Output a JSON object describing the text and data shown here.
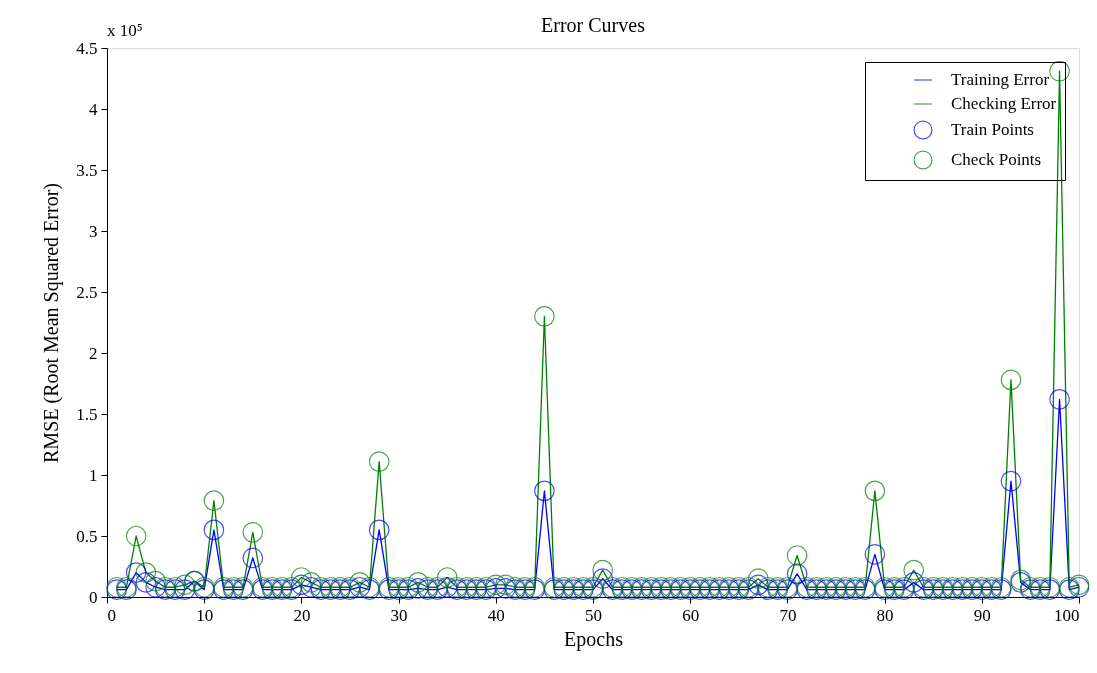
{
  "chart_data": {
    "type": "line",
    "title": "Error Curves",
    "xlabel": "Epochs",
    "ylabel": "RMSE (Root Mean Squared Error)",
    "annotations": [
      "x 10⁵"
    ],
    "x": [
      1,
      2,
      3,
      4,
      5,
      6,
      7,
      8,
      9,
      10,
      11,
      12,
      13,
      14,
      15,
      16,
      17,
      18,
      19,
      20,
      21,
      22,
      23,
      24,
      25,
      26,
      27,
      28,
      29,
      30,
      31,
      32,
      33,
      34,
      35,
      36,
      37,
      38,
      39,
      40,
      41,
      42,
      43,
      44,
      45,
      46,
      47,
      48,
      49,
      50,
      51,
      52,
      53,
      54,
      55,
      56,
      57,
      58,
      59,
      60,
      61,
      62,
      63,
      64,
      65,
      66,
      67,
      68,
      69,
      70,
      71,
      72,
      73,
      74,
      75,
      76,
      77,
      78,
      79,
      80,
      81,
      82,
      83,
      84,
      85,
      86,
      87,
      88,
      89,
      90,
      91,
      92,
      93,
      94,
      95,
      96,
      97,
      98,
      99,
      100
    ],
    "series": [
      {
        "name": "Training Error",
        "color": "#0000ff",
        "values": [
          0.06,
          0.06,
          0.2,
          0.12,
          0.08,
          0.06,
          0.06,
          0.06,
          0.13,
          0.06,
          0.55,
          0.06,
          0.06,
          0.06,
          0.32,
          0.06,
          0.06,
          0.06,
          0.06,
          0.1,
          0.08,
          0.06,
          0.06,
          0.06,
          0.06,
          0.08,
          0.06,
          0.55,
          0.06,
          0.06,
          0.06,
          0.07,
          0.06,
          0.06,
          0.08,
          0.06,
          0.06,
          0.06,
          0.06,
          0.07,
          0.07,
          0.06,
          0.06,
          0.06,
          0.87,
          0.06,
          0.06,
          0.06,
          0.06,
          0.06,
          0.15,
          0.06,
          0.06,
          0.06,
          0.06,
          0.06,
          0.06,
          0.06,
          0.06,
          0.06,
          0.06,
          0.06,
          0.06,
          0.06,
          0.06,
          0.06,
          0.1,
          0.06,
          0.06,
          0.06,
          0.19,
          0.06,
          0.06,
          0.06,
          0.06,
          0.06,
          0.06,
          0.06,
          0.35,
          0.06,
          0.06,
          0.06,
          0.12,
          0.06,
          0.06,
          0.06,
          0.06,
          0.06,
          0.06,
          0.06,
          0.06,
          0.06,
          0.95,
          0.12,
          0.06,
          0.06,
          0.06,
          1.62,
          0.06,
          0.08
        ]
      },
      {
        "name": "Checking Error",
        "color": "#008000",
        "values": [
          0.08,
          0.08,
          0.5,
          0.2,
          0.13,
          0.08,
          0.08,
          0.1,
          0.13,
          0.08,
          0.79,
          0.08,
          0.08,
          0.08,
          0.53,
          0.08,
          0.08,
          0.08,
          0.08,
          0.16,
          0.12,
          0.08,
          0.08,
          0.08,
          0.08,
          0.12,
          0.08,
          1.11,
          0.08,
          0.08,
          0.08,
          0.12,
          0.08,
          0.08,
          0.16,
          0.08,
          0.08,
          0.08,
          0.08,
          0.1,
          0.1,
          0.08,
          0.08,
          0.08,
          2.3,
          0.08,
          0.08,
          0.08,
          0.08,
          0.08,
          0.22,
          0.08,
          0.08,
          0.08,
          0.08,
          0.08,
          0.08,
          0.08,
          0.08,
          0.08,
          0.08,
          0.08,
          0.08,
          0.08,
          0.08,
          0.08,
          0.15,
          0.08,
          0.08,
          0.08,
          0.34,
          0.08,
          0.08,
          0.08,
          0.08,
          0.08,
          0.08,
          0.08,
          0.87,
          0.08,
          0.08,
          0.08,
          0.22,
          0.08,
          0.08,
          0.08,
          0.08,
          0.08,
          0.08,
          0.08,
          0.08,
          0.08,
          1.78,
          0.14,
          0.08,
          0.08,
          0.08,
          4.31,
          0.08,
          0.1
        ]
      },
      {
        "name": "Train Points",
        "type": "scatter",
        "marker": "circle",
        "color": "#0000ff",
        "values": [
          0.06,
          0.06,
          0.2,
          0.12,
          0.08,
          0.06,
          0.06,
          0.06,
          0.13,
          0.06,
          0.55,
          0.06,
          0.06,
          0.06,
          0.32,
          0.06,
          0.06,
          0.06,
          0.06,
          0.1,
          0.08,
          0.06,
          0.06,
          0.06,
          0.06,
          0.08,
          0.06,
          0.55,
          0.06,
          0.06,
          0.06,
          0.07,
          0.06,
          0.06,
          0.08,
          0.06,
          0.06,
          0.06,
          0.06,
          0.07,
          0.07,
          0.06,
          0.06,
          0.06,
          0.87,
          0.06,
          0.06,
          0.06,
          0.06,
          0.06,
          0.15,
          0.06,
          0.06,
          0.06,
          0.06,
          0.06,
          0.06,
          0.06,
          0.06,
          0.06,
          0.06,
          0.06,
          0.06,
          0.06,
          0.06,
          0.06,
          0.1,
          0.06,
          0.06,
          0.06,
          0.19,
          0.06,
          0.06,
          0.06,
          0.06,
          0.06,
          0.06,
          0.06,
          0.35,
          0.06,
          0.06,
          0.06,
          0.12,
          0.06,
          0.06,
          0.06,
          0.06,
          0.06,
          0.06,
          0.06,
          0.06,
          0.06,
          0.95,
          0.12,
          0.06,
          0.06,
          0.06,
          1.62,
          0.06,
          0.08
        ]
      },
      {
        "name": "Check Points",
        "type": "scatter",
        "marker": "circle",
        "color": "#008000",
        "values": [
          0.08,
          0.08,
          0.5,
          0.2,
          0.13,
          0.08,
          0.08,
          0.1,
          0.13,
          0.08,
          0.79,
          0.08,
          0.08,
          0.08,
          0.53,
          0.08,
          0.08,
          0.08,
          0.08,
          0.16,
          0.12,
          0.08,
          0.08,
          0.08,
          0.08,
          0.12,
          0.08,
          1.11,
          0.08,
          0.08,
          0.08,
          0.12,
          0.08,
          0.08,
          0.16,
          0.08,
          0.08,
          0.08,
          0.08,
          0.1,
          0.1,
          0.08,
          0.08,
          0.08,
          2.3,
          0.08,
          0.08,
          0.08,
          0.08,
          0.08,
          0.22,
          0.08,
          0.08,
          0.08,
          0.08,
          0.08,
          0.08,
          0.08,
          0.08,
          0.08,
          0.08,
          0.08,
          0.08,
          0.08,
          0.08,
          0.08,
          0.15,
          0.08,
          0.08,
          0.08,
          0.34,
          0.08,
          0.08,
          0.08,
          0.08,
          0.08,
          0.08,
          0.08,
          0.87,
          0.08,
          0.08,
          0.08,
          0.22,
          0.08,
          0.08,
          0.08,
          0.08,
          0.08,
          0.08,
          0.08,
          0.08,
          0.08,
          1.78,
          0.14,
          0.08,
          0.08,
          0.08,
          4.31,
          0.08,
          0.1
        ]
      }
    ],
    "xlim": [
      0,
      100
    ],
    "xticks": [
      0,
      10,
      20,
      30,
      40,
      50,
      60,
      70,
      80,
      90,
      100
    ],
    "ylim": [
      0,
      4.5
    ],
    "yticks": [
      0,
      0.5,
      1,
      1.5,
      2,
      2.5,
      3,
      3.5,
      4,
      4.5
    ],
    "grid": false,
    "legend": "top right"
  }
}
